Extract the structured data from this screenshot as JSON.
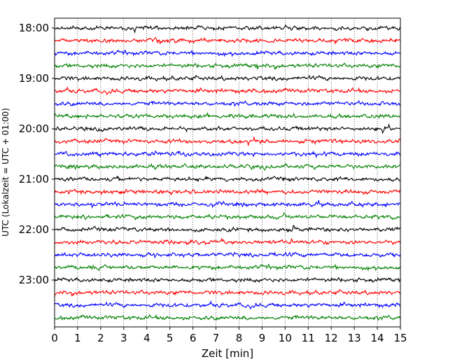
{
  "chart_data": {
    "type": "line",
    "title": "",
    "xlabel": "Zeit  [min]",
    "ylabel": "UTC (Lokalzeit = UTC + 01:00)",
    "xlim": [
      0,
      15
    ],
    "xticks": [
      0,
      1,
      2,
      3,
      4,
      5,
      6,
      7,
      8,
      9,
      10,
      11,
      12,
      13,
      14,
      15
    ],
    "ytick_labels": [
      "18:00",
      "19:00",
      "20:00",
      "21:00",
      "22:00",
      "23:00"
    ],
    "grid": "vertical dotted",
    "trace_interval_min": 15,
    "trace_colors": [
      "#000000",
      "#ff0000",
      "#0000ff",
      "#008000"
    ],
    "traces": [
      {
        "start": "18:00",
        "color": "#000000"
      },
      {
        "start": "18:15",
        "color": "#ff0000"
      },
      {
        "start": "18:30",
        "color": "#0000ff"
      },
      {
        "start": "18:45",
        "color": "#008000"
      },
      {
        "start": "19:00",
        "color": "#000000"
      },
      {
        "start": "19:15",
        "color": "#ff0000"
      },
      {
        "start": "19:30",
        "color": "#0000ff"
      },
      {
        "start": "19:45",
        "color": "#008000"
      },
      {
        "start": "20:00",
        "color": "#000000"
      },
      {
        "start": "20:15",
        "color": "#ff0000"
      },
      {
        "start": "20:30",
        "color": "#0000ff"
      },
      {
        "start": "20:45",
        "color": "#008000"
      },
      {
        "start": "21:00",
        "color": "#000000"
      },
      {
        "start": "21:15",
        "color": "#ff0000"
      },
      {
        "start": "21:30",
        "color": "#0000ff"
      },
      {
        "start": "21:45",
        "color": "#008000"
      },
      {
        "start": "22:00",
        "color": "#000000"
      },
      {
        "start": "22:15",
        "color": "#ff0000"
      },
      {
        "start": "22:30",
        "color": "#0000ff"
      },
      {
        "start": "22:45",
        "color": "#008000"
      },
      {
        "start": "23:00",
        "color": "#000000"
      },
      {
        "start": "23:15",
        "color": "#ff0000"
      },
      {
        "start": "23:30",
        "color": "#0000ff"
      },
      {
        "start": "23:45",
        "color": "#008000"
      }
    ]
  }
}
